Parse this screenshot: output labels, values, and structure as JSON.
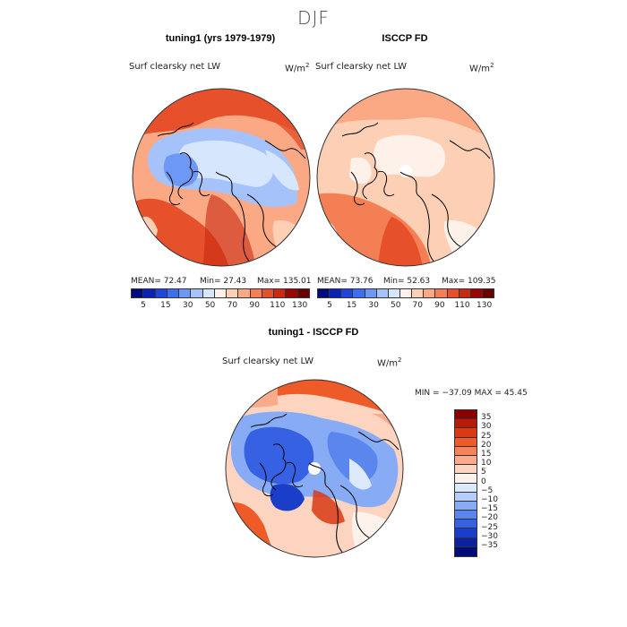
{
  "page": {
    "season": "DJF"
  },
  "panels": {
    "left": {
      "title": "tuning1 (yrs 1979-1979)",
      "field": "Surf clearsky net LW",
      "units": "W/m",
      "units_sup": "2",
      "mean_label": "MEAN=  72.47",
      "min_label": "Min=  27.43",
      "max_label": "Max=  135.01",
      "stats": {
        "mean": 72.47,
        "min": 27.43,
        "max": 135.01
      }
    },
    "right": {
      "title": "ISCCP FD",
      "field": "Surf clearsky net LW",
      "units": "W/m",
      "units_sup": "2",
      "mean_label": "MEAN=  73.76",
      "min_label": "Min=  52.63",
      "max_label": "Max=  109.35",
      "stats": {
        "mean": 73.76,
        "min": 52.63,
        "max": 109.35
      }
    },
    "diff": {
      "title": "tuning1 - ISCCP FD",
      "field": "Surf clearsky net LW",
      "units": "W/m",
      "units_sup": "2",
      "minmax_label": "MIN = −37.09  MAX =  45.45",
      "stats": {
        "min": -37.09,
        "max": 45.45
      }
    }
  },
  "colorbar_abs": {
    "colors": [
      "#000a80",
      "#0a23b4",
      "#1e46dc",
      "#3c6ef0",
      "#6e98f5",
      "#a5c3fa",
      "#d6e6fc",
      "#fdf1e9",
      "#fdd0b5",
      "#fba985",
      "#f57f55",
      "#e6502b",
      "#c92a12",
      "#990500",
      "#6b0000"
    ],
    "tick_labels": [
      "5",
      "15",
      "30",
      "50",
      "70",
      "90",
      "110",
      "130"
    ]
  },
  "colorbar_diff": {
    "colors": [
      "#8a0000",
      "#b81a08",
      "#d83a14",
      "#ee5a28",
      "#f7825a",
      "#fbab8c",
      "#fdd4c0",
      "#fdf3ec",
      "#dce9fc",
      "#b4cdfa",
      "#87acf5",
      "#5b86ee",
      "#3561e2",
      "#1b3ec8",
      "#0a22a0",
      "#000c78"
    ],
    "tick_labels": [
      "35",
      "30",
      "25",
      "20",
      "15",
      "10",
      "5",
      "0",
      "−5",
      "−10",
      "−15",
      "−20",
      "−25",
      "−30",
      "−35"
    ]
  },
  "chart_data": [
    {
      "type": "heatmap",
      "title": "tuning1 (yrs 1979-1979)",
      "subtitle": "Surf clearsky net LW",
      "units": "W/m2",
      "projection": "north-polar-stereographic",
      "mean": 72.47,
      "min": 27.43,
      "max": 135.01,
      "contour_levels": [
        5,
        10,
        15,
        20,
        30,
        40,
        50,
        60,
        70,
        80,
        90,
        100,
        110,
        120,
        130
      ]
    },
    {
      "type": "heatmap",
      "title": "ISCCP FD",
      "subtitle": "Surf clearsky net LW",
      "units": "W/m2",
      "projection": "north-polar-stereographic",
      "mean": 73.76,
      "min": 52.63,
      "max": 109.35,
      "contour_levels": [
        5,
        10,
        15,
        20,
        30,
        40,
        50,
        60,
        70,
        80,
        90,
        100,
        110,
        120,
        130
      ]
    },
    {
      "type": "heatmap",
      "title": "tuning1 - ISCCP FD",
      "subtitle": "Surf clearsky net LW",
      "units": "W/m2",
      "projection": "north-polar-stereographic",
      "min": -37.09,
      "max": 45.45,
      "contour_levels": [
        35,
        30,
        25,
        20,
        15,
        10,
        5,
        0,
        -5,
        -10,
        -15,
        -20,
        -25,
        -30,
        -35
      ]
    }
  ]
}
